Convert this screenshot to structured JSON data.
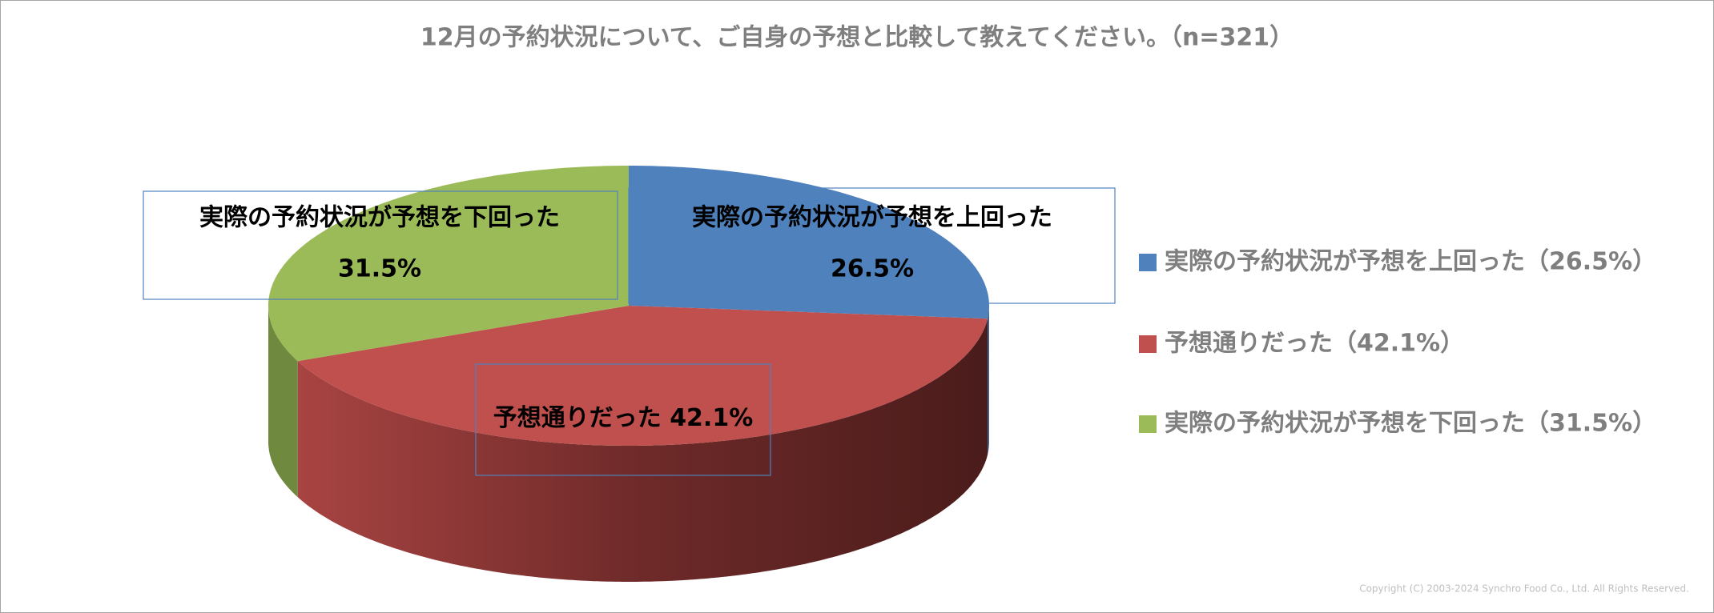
{
  "chart_data": {
    "type": "pie3d",
    "title": "12月の予約状況について、ご自身の予想と比較して教えてください。（n=321）",
    "categories": [
      "実際の予約状況が予想を上回った",
      "予想通りだった",
      "実際の予約状況が予想を下回った"
    ],
    "values": [
      26.5,
      42.1,
      31.5
    ],
    "value_labels": [
      "26.5%",
      "42.1%",
      "31.5%"
    ],
    "legend_labels": [
      "実際の予約状況が予想を上回った（26.5%）",
      "予想通りだった（42.1%）",
      "実際の予約状況が予想を下回った（31.5%）"
    ],
    "colors": [
      "#4f81bd",
      "#c0504d",
      "#9bbb59"
    ],
    "legend": "right"
  },
  "footer": {
    "copyright": "Copyright (C) 2003-2024   Synchro Food Co., Ltd. All Rights Reserved."
  }
}
